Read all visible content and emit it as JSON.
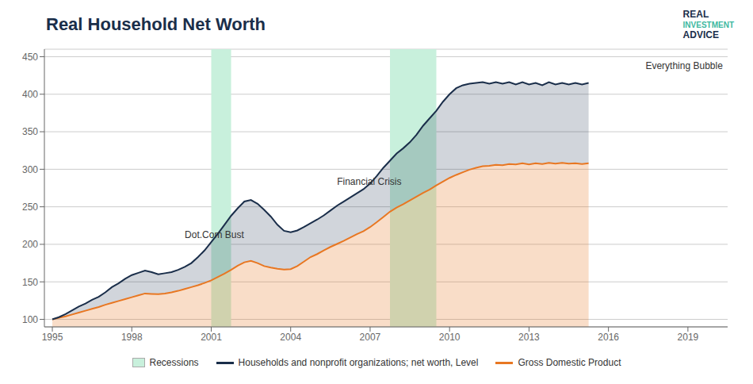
{
  "chart_data": {
    "type": "line",
    "title": "Real Household Net Worth",
    "x": [
      1995.0,
      1995.25,
      1995.5,
      1995.75,
      1996.0,
      1996.25,
      1996.5,
      1996.75,
      1997.0,
      1997.25,
      1997.5,
      1997.75,
      1998.0,
      1998.25,
      1998.5,
      1998.75,
      1999.0,
      1999.25,
      1999.5,
      1999.75,
      2000.0,
      2000.25,
      2000.5,
      2000.75,
      2001.0,
      2001.25,
      2001.5,
      2001.75,
      2002.0,
      2002.25,
      2002.5,
      2002.75,
      2003.0,
      2003.25,
      2003.5,
      2003.75,
      2004.0,
      2004.25,
      2004.5,
      2004.75,
      2005.0,
      2005.25,
      2005.5,
      2005.75,
      2006.0,
      2006.25,
      2006.5,
      2006.75,
      2007.0,
      2007.25,
      2007.5,
      2007.75,
      2008.0,
      2008.25,
      2008.5,
      2008.75,
      2009.0,
      2009.25,
      2009.5,
      2009.75,
      2010.0,
      2010.25,
      2010.5,
      2010.75,
      2011.0,
      2011.25,
      2011.5,
      2011.75,
      2012.0,
      2012.25,
      2012.5,
      2012.75,
      2013.0,
      2013.25,
      2013.5,
      2013.75,
      2014.0,
      2014.25,
      2014.5,
      2014.75,
      2015.0,
      2015.25
    ],
    "series": [
      {
        "name": "Households and nonprofit organizations; net worth, Level",
        "color": "#1a2e4a",
        "values": [
          100.0,
          103.0,
          107.0,
          112.0,
          117.0,
          121.0,
          126.0,
          130.0,
          136.0,
          143.0,
          148.0,
          154.0,
          159.0,
          162.0,
          165.0,
          163.0,
          160.0,
          161.5,
          163.0,
          166.0,
          170.0,
          175.0,
          183.0,
          192.0,
          203.0,
          214.0,
          226.0,
          238.0,
          248.0,
          257.0,
          259.0,
          254.0,
          246.0,
          237.0,
          226.0,
          218.0,
          216.0,
          218.5,
          223.0,
          228.0,
          233.0,
          238.5,
          245.0,
          251.5,
          257.0,
          262.5,
          268.0,
          273.5,
          281.0,
          291.0,
          302.0,
          311.5,
          321.0,
          328.0,
          336.0,
          346.0,
          358.0,
          368.0,
          378.0,
          390.0,
          400.0,
          408.0,
          412.0,
          414.0,
          415.0,
          416.0,
          414.0,
          416.0,
          414.0,
          416.0,
          413.0,
          416.0,
          413.0,
          415.0,
          412.0,
          416.0,
          413.0,
          415.0,
          413.0,
          415.0,
          413.0,
          415.0
        ]
      },
      {
        "name": "Gross Domestic Product",
        "color": "#e87722",
        "values": [
          100.0,
          102.0,
          104.0,
          106.5,
          109.0,
          111.5,
          114.0,
          116.5,
          119.5,
          122.0,
          124.5,
          127.0,
          129.5,
          132.0,
          134.5,
          134.0,
          133.5,
          134.5,
          136.0,
          138.0,
          140.5,
          143.0,
          145.5,
          148.5,
          152.0,
          156.5,
          161.0,
          166.0,
          171.5,
          176.0,
          178.0,
          175.0,
          171.0,
          169.0,
          167.5,
          166.5,
          167.0,
          171.0,
          177.0,
          183.0,
          187.0,
          192.0,
          196.5,
          200.5,
          204.5,
          209.0,
          213.5,
          217.5,
          223.0,
          229.5,
          236.5,
          243.5,
          249.0,
          253.5,
          258.5,
          263.5,
          268.5,
          273.0,
          278.5,
          283.5,
          288.5,
          292.5,
          296.0,
          299.5,
          302.0,
          304.0,
          304.5,
          306.0,
          305.5,
          307.0,
          306.5,
          308.0,
          306.5,
          308.0,
          307.0,
          308.5,
          307.5,
          308.5,
          307.5,
          308.0,
          307.0,
          308.0
        ]
      }
    ],
    "shaded_ranges": {
      "name": "Recessions",
      "color": "#c8f0dc",
      "ranges": [
        [
          2001.0,
          2001.75
        ],
        [
          2007.75,
          2009.5
        ]
      ]
    },
    "annotations": [
      {
        "text": "Dot.Com Bust",
        "x": 2000.0,
        "y": 205
      },
      {
        "text": "Financial Crisis",
        "x": 2005.75,
        "y": 276
      },
      {
        "text": "Everything Bubble",
        "x": 2017.4,
        "y": 430
      }
    ],
    "logo_text": [
      "REAL",
      "INVESTMENT",
      "ADVICE"
    ],
    "xlim": [
      1994.7,
      2020.5
    ],
    "xticks": [
      1995,
      1998,
      2001,
      2004,
      2007,
      2010,
      2013,
      2016,
      2019
    ],
    "ylim": [
      90,
      460
    ],
    "yticks": [
      100,
      150,
      200,
      250,
      300,
      350,
      400,
      450
    ],
    "grid": true,
    "legend": "bottom"
  }
}
